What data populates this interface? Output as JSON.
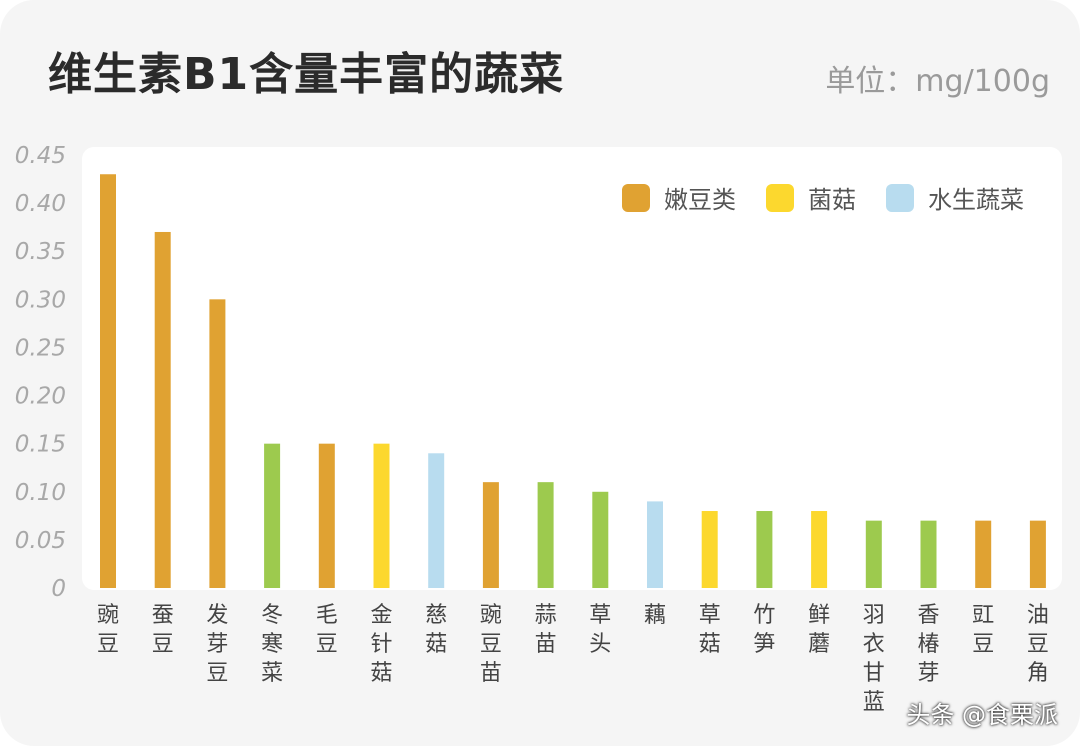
{
  "title": "维生素B1含量丰富的蔬菜",
  "unit": "单位：mg/100g",
  "watermark": "头条 @食栗派",
  "colors": {
    "嫩豆类": "#e0a232",
    "菌菇": "#fcd82e",
    "水生蔬菜": "#b8dcef",
    "other": "#9dca4e"
  },
  "chart_data": {
    "type": "bar",
    "title": "维生素B1含量丰富的蔬菜",
    "ylabel": "单位：mg/100g",
    "ylim": [
      0,
      0.45
    ],
    "yticks": [
      "0",
      "0.05",
      "0.10",
      "0.15",
      "0.20",
      "0.25",
      "0.30",
      "0.35",
      "0.40",
      "0.45"
    ],
    "grid": false,
    "legend_position": "top-right",
    "legend": [
      "嫩豆类",
      "菌菇",
      "水生蔬菜"
    ],
    "categories": [
      "豌豆",
      "蚕豆",
      "发芽豆",
      "冬寒菜",
      "毛豆",
      "金针菇",
      "慈菇",
      "豌豆苗",
      "蒜苗",
      "草头",
      "藕",
      "草菇",
      "竹笋",
      "鲜蘑",
      "羽衣甘蓝",
      "香椿芽",
      "豇豆",
      "油豆角"
    ],
    "values": [
      0.43,
      0.37,
      0.3,
      0.15,
      0.15,
      0.15,
      0.14,
      0.11,
      0.11,
      0.1,
      0.09,
      0.08,
      0.08,
      0.08,
      0.07,
      0.07,
      0.07,
      0.07
    ],
    "groups": [
      "嫩豆类",
      "嫩豆类",
      "嫩豆类",
      "other",
      "嫩豆类",
      "菌菇",
      "水生蔬菜",
      "嫩豆类",
      "other",
      "other",
      "水生蔬菜",
      "菌菇",
      "other",
      "菌菇",
      "other",
      "other",
      "嫩豆类",
      "嫩豆类"
    ]
  }
}
